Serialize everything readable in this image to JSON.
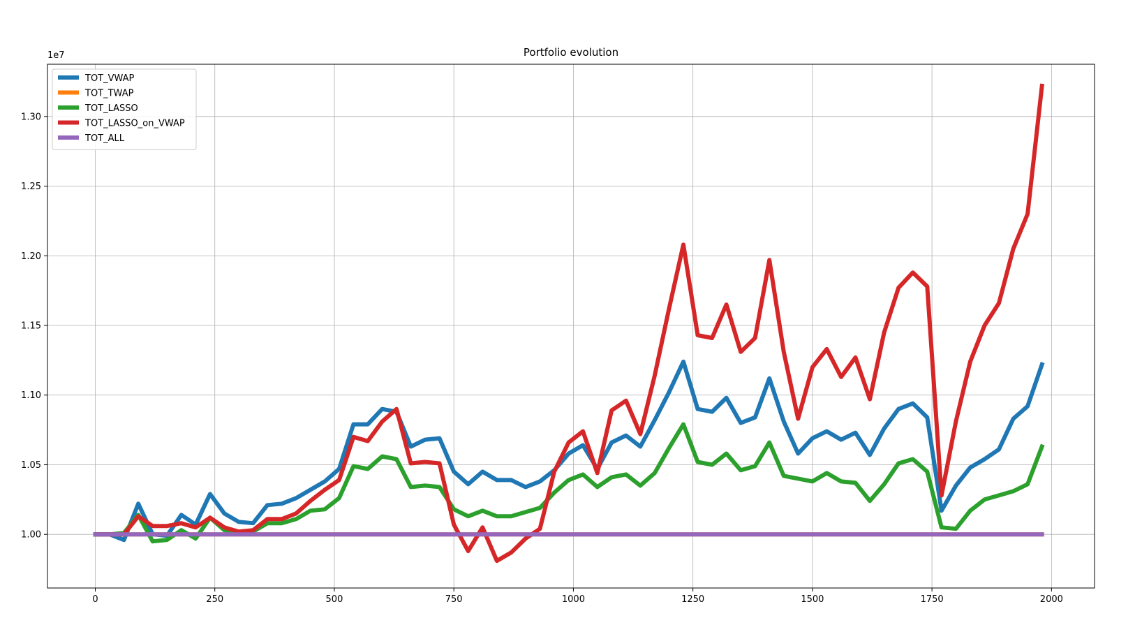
{
  "chart_data": {
    "type": "line",
    "title": "Portfolio evolution",
    "xlabel": "",
    "ylabel": "",
    "y_offset_label": "1e7",
    "xlim": [
      -100,
      2090
    ],
    "ylim": [
      0.9615,
      1.3375
    ],
    "x_ticks": [
      0,
      250,
      500,
      750,
      1000,
      1250,
      1500,
      1750,
      2000
    ],
    "x_tick_labels": [
      "0",
      "250",
      "500",
      "750",
      "1000",
      "1250",
      "1500",
      "1750",
      "2000"
    ],
    "y_ticks": [
      1.0,
      1.05,
      1.1,
      1.15,
      1.2,
      1.25,
      1.3
    ],
    "y_tick_labels": [
      "1.00",
      "1.05",
      "1.10",
      "1.15",
      "1.20",
      "1.25",
      "1.30"
    ],
    "grid": true,
    "legend_position": "top-left",
    "x": [
      0,
      30,
      60,
      90,
      120,
      150,
      180,
      210,
      240,
      270,
      300,
      330,
      360,
      390,
      420,
      450,
      480,
      510,
      540,
      570,
      600,
      630,
      660,
      690,
      720,
      750,
      780,
      810,
      840,
      870,
      900,
      930,
      960,
      990,
      1020,
      1050,
      1080,
      1110,
      1140,
      1170,
      1200,
      1230,
      1260,
      1290,
      1320,
      1350,
      1380,
      1410,
      1440,
      1470,
      1500,
      1530,
      1560,
      1590,
      1620,
      1650,
      1680,
      1710,
      1740,
      1770,
      1800,
      1830,
      1860,
      1890,
      1920,
      1950,
      1980
    ],
    "series": [
      {
        "name": "TOT_VWAP",
        "color": "#1f77b4",
        "values": [
          1.0,
          1.0,
          0.996,
          1.022,
          1.0,
          0.999,
          1.014,
          1.007,
          1.029,
          1.015,
          1.009,
          1.008,
          1.021,
          1.022,
          1.026,
          1.032,
          1.038,
          1.047,
          1.079,
          1.079,
          1.09,
          1.088,
          1.063,
          1.068,
          1.069,
          1.045,
          1.036,
          1.045,
          1.039,
          1.039,
          1.034,
          1.038,
          1.046,
          1.058,
          1.064,
          1.047,
          1.066,
          1.071,
          1.063,
          1.082,
          1.102,
          1.124,
          1.09,
          1.088,
          1.098,
          1.08,
          1.084,
          1.112,
          1.081,
          1.058,
          1.069,
          1.074,
          1.068,
          1.073,
          1.057,
          1.076,
          1.09,
          1.094,
          1.084,
          1.017,
          1.035,
          1.048,
          1.054,
          1.061,
          1.083,
          1.092,
          1.122
        ]
      },
      {
        "name": "TOT_TWAP",
        "color": "#ff7f0e",
        "values": [
          1.0,
          1.0,
          1.0,
          1.0,
          1.0,
          1.0,
          1.0,
          1.0,
          1.0,
          1.0,
          1.0,
          1.0,
          1.0,
          1.0,
          1.0,
          1.0,
          1.0,
          1.0,
          1.0,
          1.0,
          1.0,
          1.0,
          1.0,
          1.0,
          1.0,
          1.0,
          1.0,
          1.0,
          1.0,
          1.0,
          1.0,
          1.0,
          1.0,
          1.0,
          1.0,
          1.0,
          1.0,
          1.0,
          1.0,
          1.0,
          1.0,
          1.0,
          1.0,
          1.0,
          1.0,
          1.0,
          1.0,
          1.0,
          1.0,
          1.0,
          1.0,
          1.0,
          1.0,
          1.0,
          1.0,
          1.0,
          1.0,
          1.0,
          1.0,
          1.0,
          1.0,
          1.0,
          1.0,
          1.0,
          1.0,
          1.0,
          1.0
        ]
      },
      {
        "name": "TOT_LASSO",
        "color": "#2ca02c",
        "values": [
          1.0,
          1.0,
          1.001,
          1.014,
          0.995,
          0.996,
          1.003,
          0.997,
          1.012,
          1.003,
          1.001,
          1.002,
          1.008,
          1.008,
          1.011,
          1.017,
          1.018,
          1.026,
          1.049,
          1.047,
          1.056,
          1.054,
          1.034,
          1.035,
          1.034,
          1.018,
          1.013,
          1.017,
          1.013,
          1.013,
          1.016,
          1.019,
          1.03,
          1.039,
          1.043,
          1.034,
          1.041,
          1.043,
          1.035,
          1.044,
          1.062,
          1.079,
          1.052,
          1.05,
          1.058,
          1.046,
          1.049,
          1.066,
          1.042,
          1.04,
          1.038,
          1.044,
          1.038,
          1.037,
          1.024,
          1.036,
          1.051,
          1.054,
          1.045,
          1.005,
          1.004,
          1.017,
          1.025,
          1.028,
          1.031,
          1.036,
          1.063
        ]
      },
      {
        "name": "TOT_LASSO_on_VWAP",
        "color": "#d62728",
        "values": [
          1.0,
          1.0,
          1.0,
          1.013,
          1.006,
          1.006,
          1.008,
          1.005,
          1.012,
          1.005,
          1.002,
          1.003,
          1.011,
          1.011,
          1.015,
          1.024,
          1.032,
          1.039,
          1.07,
          1.067,
          1.081,
          1.09,
          1.051,
          1.052,
          1.051,
          1.007,
          0.988,
          1.005,
          0.981,
          0.987,
          0.997,
          1.004,
          1.045,
          1.066,
          1.074,
          1.044,
          1.089,
          1.096,
          1.072,
          1.114,
          1.162,
          1.208,
          1.143,
          1.141,
          1.165,
          1.131,
          1.141,
          1.197,
          1.131,
          1.083,
          1.12,
          1.133,
          1.113,
          1.127,
          1.097,
          1.145,
          1.177,
          1.188,
          1.178,
          1.028,
          1.081,
          1.124,
          1.15,
          1.166,
          1.205,
          1.23,
          1.322
        ]
      },
      {
        "name": "TOT_ALL",
        "color": "#9467bd",
        "values": [
          1.0,
          1.0,
          1.0,
          1.0,
          1.0,
          1.0,
          1.0,
          1.0,
          1.0,
          1.0,
          1.0,
          1.0,
          1.0,
          1.0,
          1.0,
          1.0,
          1.0,
          1.0,
          1.0,
          1.0,
          1.0,
          1.0,
          1.0,
          1.0,
          1.0,
          1.0,
          1.0,
          1.0,
          1.0,
          1.0,
          1.0,
          1.0,
          1.0,
          1.0,
          1.0,
          1.0,
          1.0,
          1.0,
          1.0,
          1.0,
          1.0,
          1.0,
          1.0,
          1.0,
          1.0,
          1.0,
          1.0,
          1.0,
          1.0,
          1.0,
          1.0,
          1.0,
          1.0,
          1.0,
          1.0,
          1.0,
          1.0,
          1.0,
          1.0,
          1.0,
          1.0,
          1.0,
          1.0,
          1.0,
          1.0,
          1.0,
          1.0
        ]
      }
    ]
  }
}
